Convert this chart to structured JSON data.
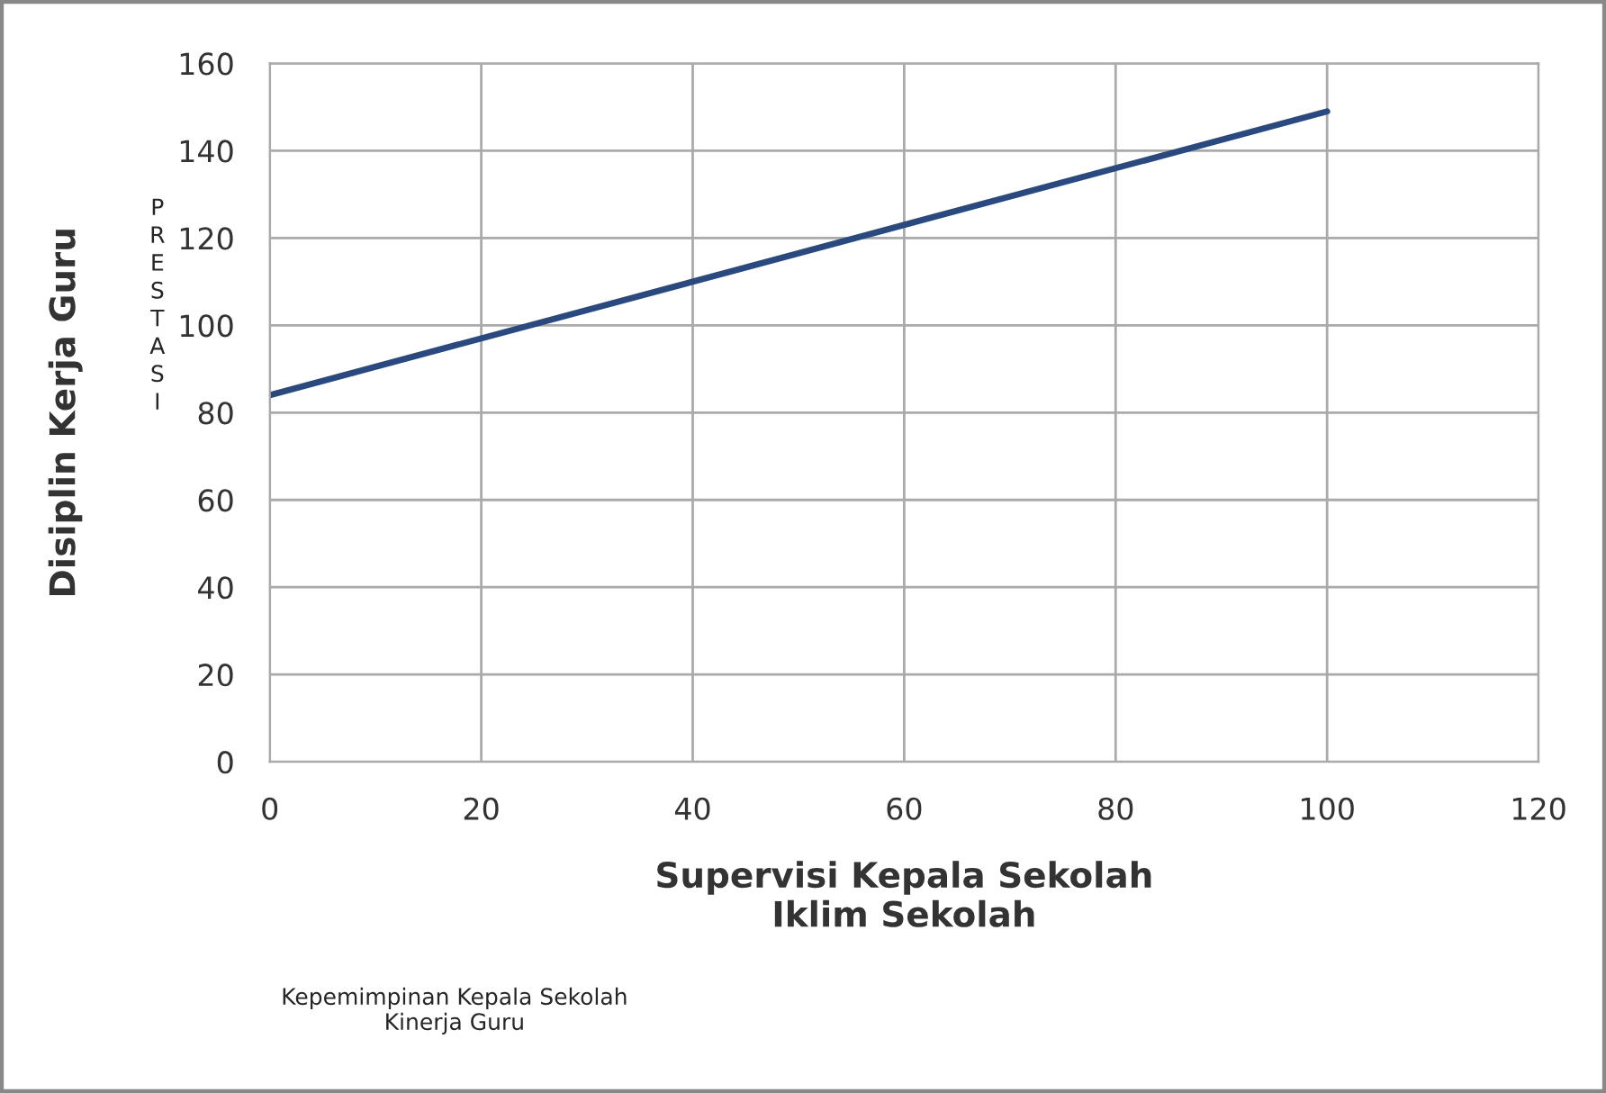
{
  "chart_data": {
    "type": "line",
    "xlabel": "Supervisi Kepala Sekolah\nIklim Sekolah",
    "ylabel": "Disiplin Kerja Guru",
    "x": [
      0,
      100
    ],
    "series": [
      {
        "color": "#2a4a7f",
        "values": [
          84,
          149
        ]
      }
    ],
    "xlim": [
      0,
      120
    ],
    "xticks": [
      0,
      20,
      40,
      60,
      80,
      100,
      120
    ],
    "ylim": [
      0,
      160
    ],
    "yticks": [
      0,
      20,
      40,
      60,
      80,
      100,
      120,
      140,
      160
    ],
    "grid": true,
    "marker": "none",
    "line_style": "solid",
    "annotations": [
      "PRESTASI",
      "Kepemimpinan Kepala Sekolah\nKinerja Guru"
    ]
  }
}
